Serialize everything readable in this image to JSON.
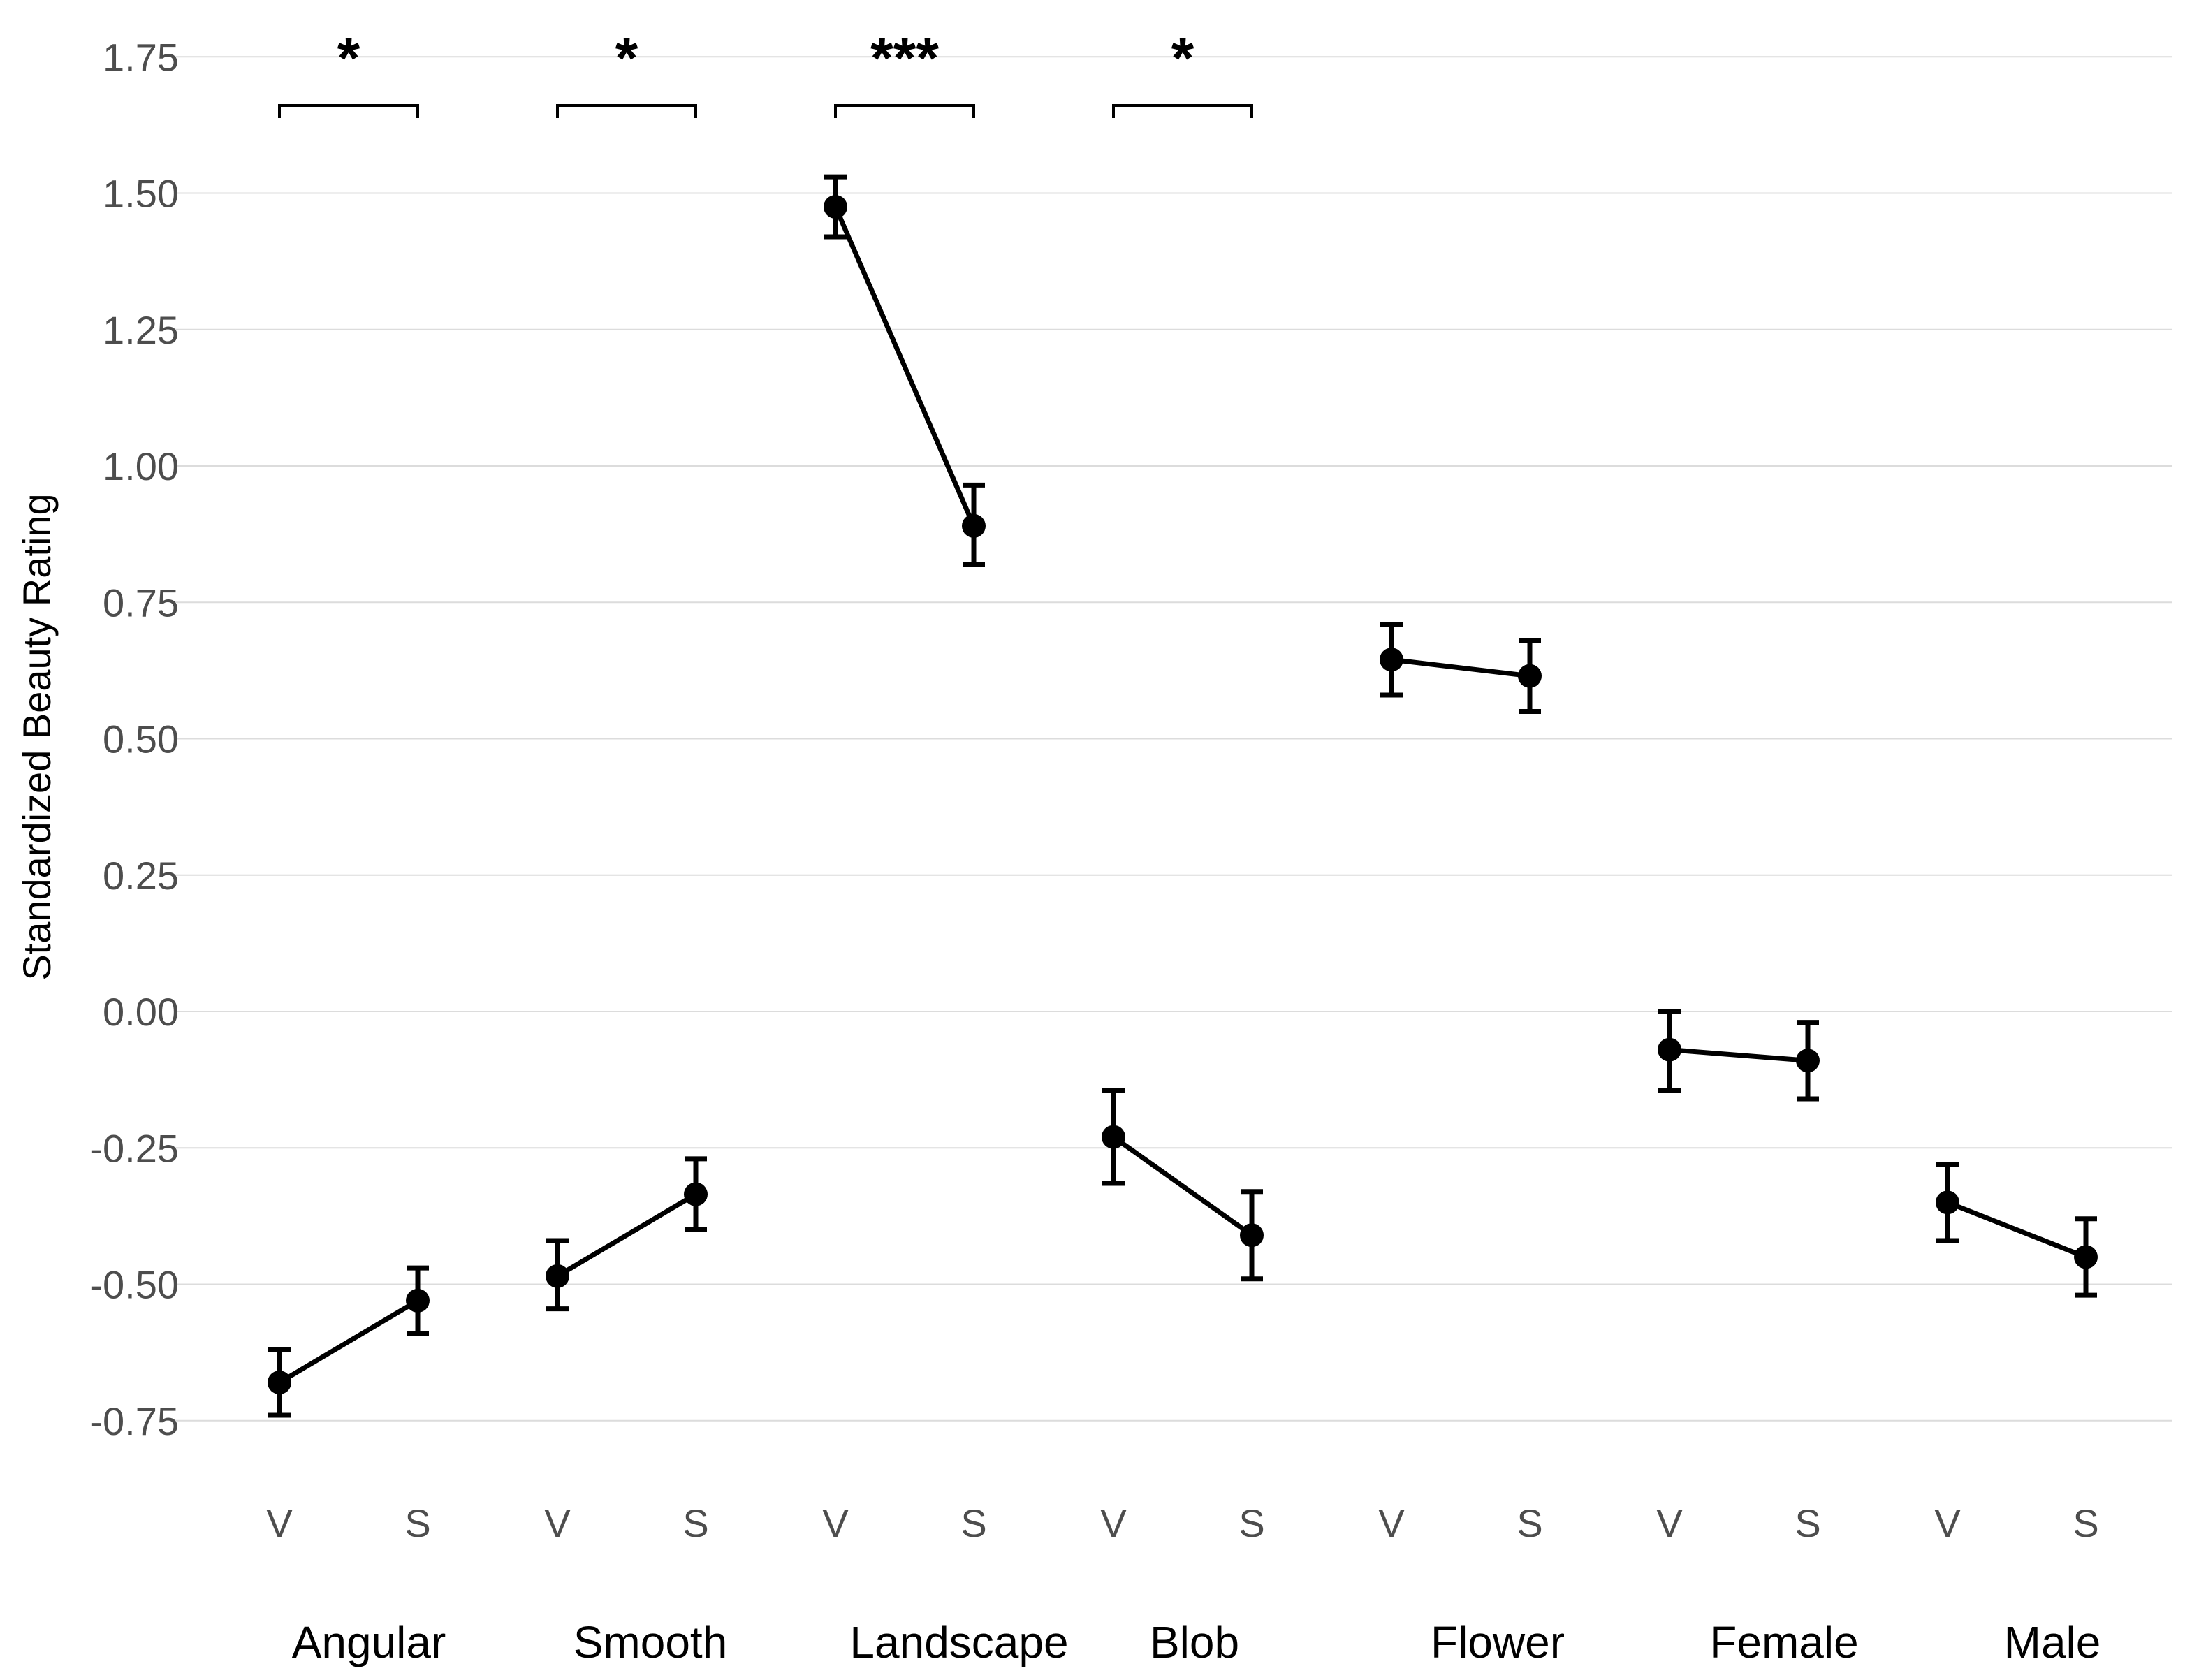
{
  "chart_data": {
    "type": "line",
    "title": "",
    "ylabel": "Standardized Beauty Rating",
    "xlabel": "",
    "ylim": [
      -0.87,
      1.84
    ],
    "yticks": [
      -0.75,
      -0.5,
      -0.25,
      0.0,
      0.25,
      0.5,
      0.75,
      1.0,
      1.25,
      1.5,
      1.75
    ],
    "ytick_labels": [
      "-0.75",
      "-0.50",
      "-0.25",
      "0.00",
      "0.25",
      "0.50",
      "0.75",
      "1.00",
      "1.25",
      "1.50",
      "1.75"
    ],
    "grid": true,
    "condition_labels": [
      "V",
      "S"
    ],
    "groups": [
      {
        "name": "Angular",
        "V": {
          "mean": -0.68,
          "low": -0.74,
          "high": -0.62
        },
        "S": {
          "mean": -0.53,
          "low": -0.59,
          "high": -0.47
        },
        "significance": "*"
      },
      {
        "name": "Smooth",
        "V": {
          "mean": -0.485,
          "low": -0.545,
          "high": -0.42
        },
        "S": {
          "mean": -0.335,
          "low": -0.4,
          "high": -0.27
        },
        "significance": "*"
      },
      {
        "name": "Landscape",
        "V": {
          "mean": 1.475,
          "low": 1.42,
          "high": 1.53
        },
        "S": {
          "mean": 0.89,
          "low": 0.82,
          "high": 0.965
        },
        "significance": "***"
      },
      {
        "name": "Blob",
        "V": {
          "mean": -0.23,
          "low": -0.315,
          "high": -0.145
        },
        "S": {
          "mean": -0.41,
          "low": -0.49,
          "high": -0.33
        },
        "significance": "*"
      },
      {
        "name": "Flower",
        "V": {
          "mean": 0.645,
          "low": 0.58,
          "high": 0.71
        },
        "S": {
          "mean": 0.615,
          "low": 0.55,
          "high": 0.68
        },
        "significance": ""
      },
      {
        "name": "Female",
        "V": {
          "mean": -0.07,
          "low": -0.145,
          "high": 0.0
        },
        "S": {
          "mean": -0.09,
          "low": -0.16,
          "high": -0.02
        },
        "significance": ""
      },
      {
        "name": "Male",
        "V": {
          "mean": -0.35,
          "low": -0.42,
          "high": -0.28
        },
        "S": {
          "mean": -0.45,
          "low": -0.52,
          "high": -0.38
        },
        "significance": ""
      }
    ]
  }
}
